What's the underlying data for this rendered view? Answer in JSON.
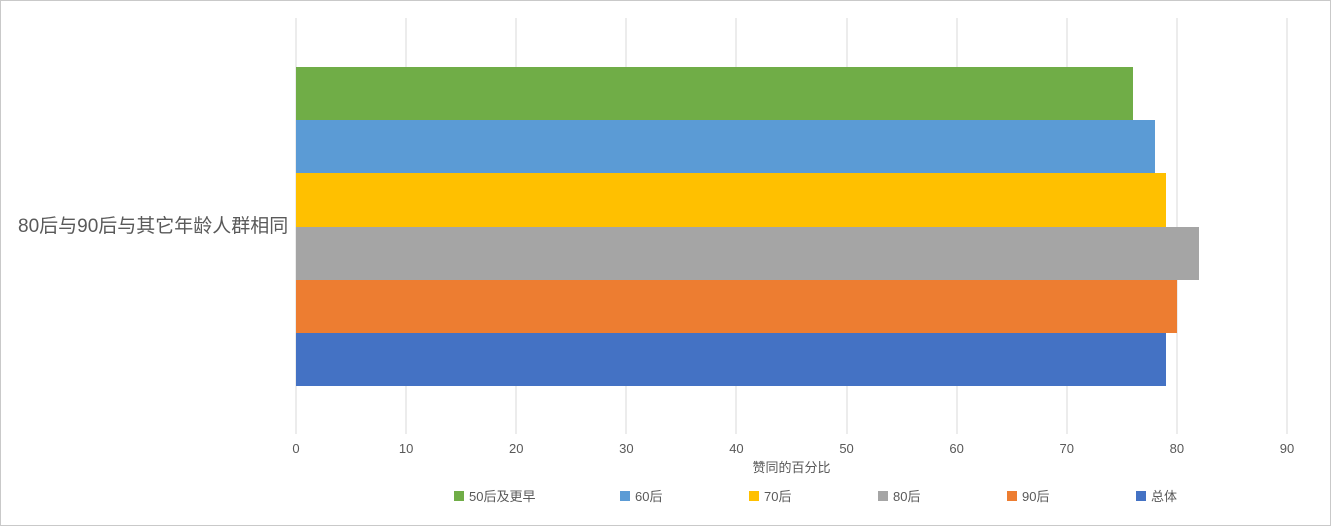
{
  "chart_data": {
    "type": "bar",
    "orientation": "horizontal",
    "categories": [
      "80后与90后与其它年龄人群相同"
    ],
    "series": [
      {
        "name": "50后及更早",
        "color": "#70AD47",
        "values": [
          76
        ]
      },
      {
        "name": "60后",
        "color": "#5B9BD5",
        "values": [
          78
        ]
      },
      {
        "name": "70后",
        "color": "#FFC000",
        "values": [
          79
        ]
      },
      {
        "name": "80后",
        "color": "#A5A5A5",
        "values": [
          82
        ]
      },
      {
        "name": "90后",
        "color": "#ED7D31",
        "values": [
          80
        ]
      },
      {
        "name": "总体",
        "color": "#4472C4",
        "values": [
          79
        ]
      }
    ],
    "xlabel": "赞同的百分比",
    "xlim": [
      0,
      90
    ],
    "xticks": [
      0,
      10,
      20,
      30,
      40,
      50,
      60,
      70,
      80,
      90
    ],
    "grid": "vertical-major",
    "legend_position": "bottom"
  },
  "styles": {
    "gridline_color": "#D9D9D9",
    "axis_text_color": "#595959",
    "frame_border_color": "#C9C9C9",
    "background": "#FFFFFF"
  }
}
